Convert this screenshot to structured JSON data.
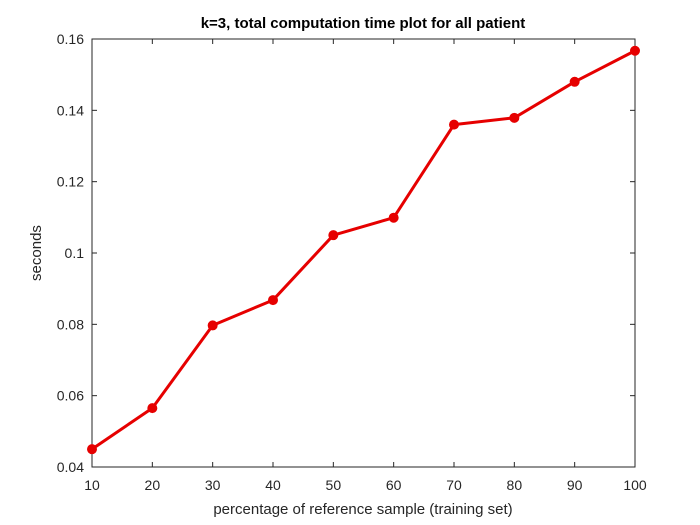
{
  "chart_data": {
    "type": "line",
    "title": "k=3, total computation time plot for all patient",
    "xlabel": "percentage of reference sample (training set)",
    "ylabel": "seconds",
    "xlim": [
      10,
      100
    ],
    "ylim": [
      0.04,
      0.16
    ],
    "xticks": [
      10,
      20,
      30,
      40,
      50,
      60,
      70,
      80,
      90,
      100
    ],
    "xtick_labels": [
      "10",
      "20",
      "30",
      "40",
      "50",
      "60",
      "70",
      "80",
      "90",
      "100"
    ],
    "yticks": [
      0.04,
      0.06,
      0.08,
      0.1,
      0.12,
      0.14,
      0.16
    ],
    "ytick_labels": [
      "0.04",
      "0.06",
      "0.08",
      "0.1",
      "0.12",
      "0.14",
      "0.16"
    ],
    "grid": false,
    "series": [
      {
        "x": [
          10,
          20,
          30,
          40,
          50,
          60,
          70,
          80,
          90,
          100
        ],
        "values": [
          0.045,
          0.0565,
          0.0797,
          0.0868,
          0.105,
          0.1099,
          0.136,
          0.1379,
          0.148,
          0.1567
        ],
        "color": "#e60000",
        "marker": "circle"
      }
    ]
  }
}
